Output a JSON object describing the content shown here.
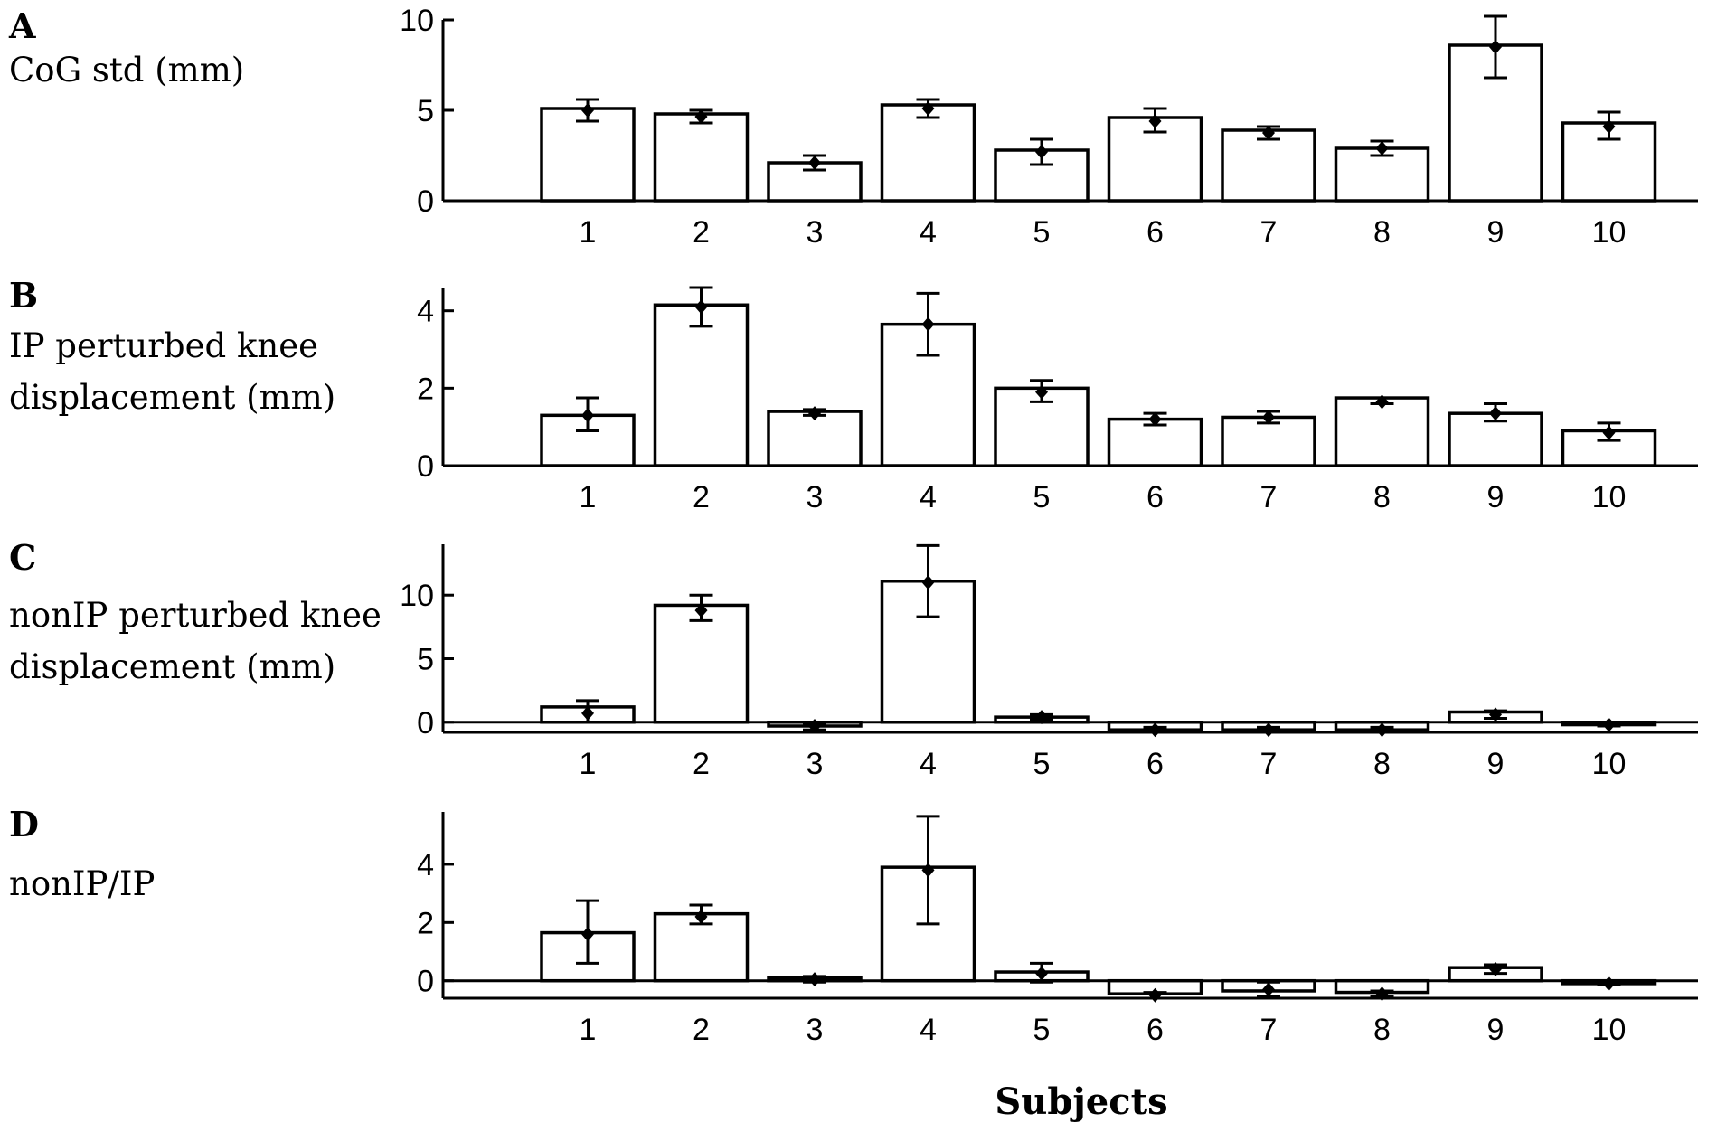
{
  "figure": {
    "xlabel": "Subjects"
  },
  "chart_data": [
    {
      "type": "bar",
      "panel": "A",
      "title_lines": [
        "CoG std (mm)"
      ],
      "categories": [
        "1",
        "2",
        "3",
        "4",
        "5",
        "6",
        "7",
        "8",
        "9",
        "10"
      ],
      "series": [
        {
          "values": [
            5.1,
            4.8,
            2.1,
            5.3,
            2.8,
            4.6,
            3.9,
            2.9,
            8.6,
            4.3
          ]
        }
      ],
      "error_bars": [
        {
          "point": 5.0,
          "low": 4.4,
          "high": 5.6
        },
        {
          "point": 4.65,
          "low": 4.3,
          "high": 5.0
        },
        {
          "point": 2.1,
          "low": 1.7,
          "high": 2.5
        },
        {
          "point": 5.1,
          "low": 4.6,
          "high": 5.6
        },
        {
          "point": 2.7,
          "low": 2.0,
          "high": 3.4
        },
        {
          "point": 4.4,
          "low": 3.8,
          "high": 5.1
        },
        {
          "point": 3.75,
          "low": 3.4,
          "high": 4.1
        },
        {
          "point": 2.9,
          "low": 2.5,
          "high": 3.3
        },
        {
          "point": 8.5,
          "low": 6.8,
          "high": 10.2
        },
        {
          "point": 4.1,
          "low": 3.4,
          "high": 4.9
        }
      ],
      "yticks": [
        0,
        5,
        10
      ],
      "ylim": [
        0,
        10
      ]
    },
    {
      "type": "bar",
      "panel": "B",
      "title_lines": [
        "IP perturbed knee",
        "displacement (mm)"
      ],
      "categories": [
        "1",
        "2",
        "3",
        "4",
        "5",
        "6",
        "7",
        "8",
        "9",
        "10"
      ],
      "series": [
        {
          "values": [
            1.3,
            4.15,
            1.4,
            3.65,
            2.0,
            1.2,
            1.25,
            1.75,
            1.35,
            0.9
          ]
        }
      ],
      "error_bars": [
        {
          "point": 1.3,
          "low": 0.9,
          "high": 1.75
        },
        {
          "point": 4.1,
          "low": 3.6,
          "high": 4.6
        },
        {
          "point": 1.35,
          "low": 1.3,
          "high": 1.45
        },
        {
          "point": 3.65,
          "low": 2.85,
          "high": 4.45
        },
        {
          "point": 1.9,
          "low": 1.65,
          "high": 2.2
        },
        {
          "point": 1.2,
          "low": 1.05,
          "high": 1.35
        },
        {
          "point": 1.25,
          "low": 1.1,
          "high": 1.4
        },
        {
          "point": 1.65,
          "low": 1.6,
          "high": 1.75
        },
        {
          "point": 1.35,
          "low": 1.15,
          "high": 1.6
        },
        {
          "point": 0.85,
          "low": 0.65,
          "high": 1.1
        }
      ],
      "yticks": [
        0,
        2,
        4
      ],
      "ylim": [
        0,
        4.6
      ]
    },
    {
      "type": "bar",
      "panel": "C",
      "title_lines": [
        "nonIP perturbed knee",
        "displacement (mm)"
      ],
      "categories": [
        "1",
        "2",
        "3",
        "4",
        "5",
        "6",
        "7",
        "8",
        "9",
        "10"
      ],
      "series": [
        {
          "values": [
            1.2,
            9.2,
            -0.3,
            11.1,
            0.4,
            -0.6,
            -0.6,
            -0.6,
            0.8,
            -0.2
          ]
        }
      ],
      "error_bars": [
        {
          "point": 0.7,
          "low": 0.0,
          "high": 1.7
        },
        {
          "point": 8.8,
          "low": 8.0,
          "high": 10.0
        },
        {
          "point": -0.3,
          "low": -0.6,
          "high": -0.1
        },
        {
          "point": 11.0,
          "low": 8.3,
          "high": 13.9
        },
        {
          "point": 0.4,
          "low": 0.2,
          "high": 0.6
        },
        {
          "point": -0.6,
          "low": -0.8,
          "high": -0.4
        },
        {
          "point": -0.6,
          "low": -0.8,
          "high": -0.4
        },
        {
          "point": -0.6,
          "low": -0.8,
          "high": -0.4
        },
        {
          "point": 0.6,
          "low": 0.3,
          "high": 0.9
        },
        {
          "point": -0.2,
          "low": -0.3,
          "high": -0.1
        }
      ],
      "yticks": [
        0,
        5,
        10
      ],
      "ylim": [
        -0.8,
        14
      ]
    },
    {
      "type": "bar",
      "panel": "D",
      "title_lines": [
        "nonIP/IP"
      ],
      "categories": [
        "1",
        "2",
        "3",
        "4",
        "5",
        "6",
        "7",
        "8",
        "9",
        "10"
      ],
      "series": [
        {
          "values": [
            1.65,
            2.3,
            0.1,
            3.9,
            0.3,
            -0.45,
            -0.35,
            -0.4,
            0.45,
            -0.1
          ]
        }
      ],
      "error_bars": [
        {
          "point": 1.6,
          "low": 0.6,
          "high": 2.75
        },
        {
          "point": 2.2,
          "low": 1.95,
          "high": 2.6
        },
        {
          "point": 0.05,
          "low": -0.05,
          "high": 0.15
        },
        {
          "point": 3.8,
          "low": 1.95,
          "high": 5.65
        },
        {
          "point": 0.25,
          "low": -0.05,
          "high": 0.6
        },
        {
          "point": -0.5,
          "low": -0.6,
          "high": -0.4
        },
        {
          "point": -0.3,
          "low": -0.55,
          "high": -0.05
        },
        {
          "point": -0.45,
          "low": -0.55,
          "high": -0.35
        },
        {
          "point": 0.4,
          "low": 0.25,
          "high": 0.55
        },
        {
          "point": -0.1,
          "low": -0.15,
          "high": -0.05
        }
      ],
      "yticks": [
        0,
        2,
        4
      ],
      "ylim": [
        -0.6,
        5.8
      ]
    }
  ]
}
